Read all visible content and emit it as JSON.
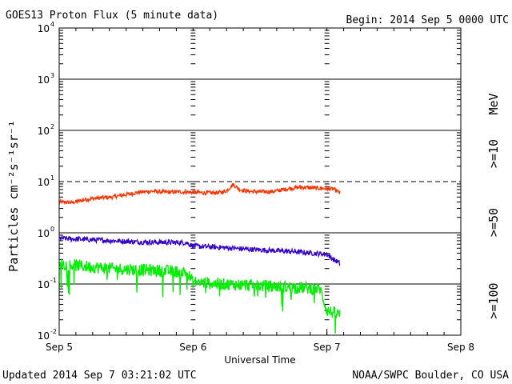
{
  "header": {
    "title": "GOES13 Proton Flux (5 minute data)",
    "begin": "Begin: 2014 Sep 5 0000 UTC"
  },
  "footer": {
    "updated": "Updated 2014 Sep  7 03:21:02 UTC",
    "credit": "NOAA/SWPC Boulder, CO USA"
  },
  "chart_data": {
    "type": "line",
    "title": "GOES13 Proton Flux (5 minute data)",
    "xlabel": "Universal Time",
    "ylabel": "Particles cm⁻²s⁻¹sr⁻¹",
    "yscale": "log",
    "ylim": [
      0.01,
      10000
    ],
    "xlim_days": [
      0,
      3
    ],
    "x_ticks": [
      "Sep 5",
      "Sep 6",
      "Sep 7",
      "Sep 8"
    ],
    "y_ticks": [
      {
        "base": "10",
        "exp": "4"
      },
      {
        "base": "10",
        "exp": "3"
      },
      {
        "base": "10",
        "exp": "2"
      },
      {
        "base": "10",
        "exp": "1"
      },
      {
        "base": "10",
        "exp": "0"
      },
      {
        "base": "10",
        "exp": "-1"
      },
      {
        "base": "10",
        "exp": "-2"
      }
    ],
    "threshold_line": 10,
    "right_label": "MeV",
    "grid": true,
    "series": [
      {
        "name": ">=10",
        "color": "#ff3300",
        "noise": 0.04,
        "points": [
          [
            0,
            4.0
          ],
          [
            0.1,
            3.9
          ],
          [
            0.2,
            4.5
          ],
          [
            0.3,
            4.8
          ],
          [
            0.4,
            5.0
          ],
          [
            0.5,
            5.6
          ],
          [
            0.6,
            6.2
          ],
          [
            0.7,
            6.5
          ],
          [
            0.8,
            6.2
          ],
          [
            0.9,
            6.3
          ],
          [
            1.0,
            6.2
          ],
          [
            1.1,
            6.0
          ],
          [
            1.2,
            6.1
          ],
          [
            1.25,
            6.6
          ],
          [
            1.3,
            8.8
          ],
          [
            1.35,
            7.0
          ],
          [
            1.4,
            6.5
          ],
          [
            1.5,
            6.3
          ],
          [
            1.6,
            6.4
          ],
          [
            1.7,
            7.2
          ],
          [
            1.8,
            7.8
          ],
          [
            1.9,
            7.5
          ],
          [
            2.0,
            7.3
          ],
          [
            2.05,
            7.1
          ],
          [
            2.1,
            6.0
          ]
        ]
      },
      {
        "name": ">=50",
        "color": "#3300cc",
        "noise": 0.05,
        "points": [
          [
            0,
            0.78
          ],
          [
            0.2,
            0.74
          ],
          [
            0.4,
            0.7
          ],
          [
            0.6,
            0.66
          ],
          [
            0.8,
            0.65
          ],
          [
            0.95,
            0.64
          ],
          [
            1.0,
            0.55
          ],
          [
            1.2,
            0.52
          ],
          [
            1.4,
            0.48
          ],
          [
            1.6,
            0.45
          ],
          [
            1.8,
            0.42
          ],
          [
            2.0,
            0.38
          ],
          [
            2.05,
            0.3
          ],
          [
            2.1,
            0.25
          ]
        ]
      },
      {
        "name": ">=100",
        "color": "#00ee00",
        "noise": 0.12,
        "points": [
          [
            0,
            0.25
          ],
          [
            0.2,
            0.22
          ],
          [
            0.4,
            0.2
          ],
          [
            0.6,
            0.19
          ],
          [
            0.8,
            0.18
          ],
          [
            0.95,
            0.17
          ],
          [
            1.0,
            0.11
          ],
          [
            1.2,
            0.1
          ],
          [
            1.4,
            0.095
          ],
          [
            1.6,
            0.09
          ],
          [
            1.8,
            0.085
          ],
          [
            1.95,
            0.08
          ],
          [
            2.0,
            0.03
          ],
          [
            2.1,
            0.025
          ]
        ]
      }
    ]
  }
}
